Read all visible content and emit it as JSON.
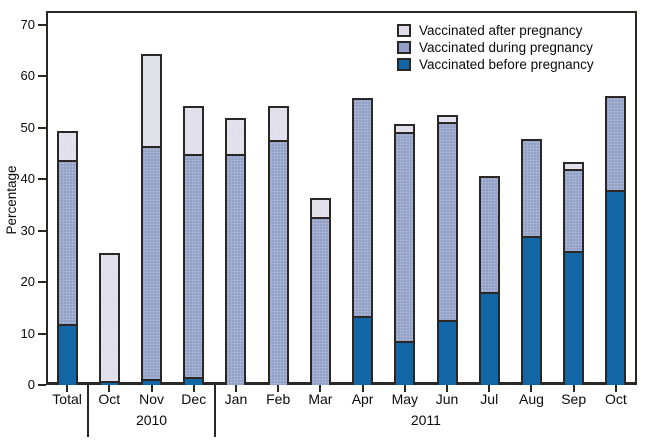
{
  "figure": {
    "background": "#ffffff",
    "frame_color": "#2b2724",
    "text_color": "#0a0a0a"
  },
  "chart_data": {
    "type": "bar",
    "stacked": true,
    "title": "",
    "xlabel": "",
    "ylabel": "Percentage",
    "ylim": [
      0,
      70
    ],
    "yticks": [
      0,
      10,
      20,
      30,
      40,
      50,
      60,
      70
    ],
    "grid": false,
    "legend_position": "top-right-inside",
    "categories": [
      "Total",
      "Oct",
      "Nov",
      "Dec",
      "Jan",
      "Feb",
      "Mar",
      "Apr",
      "May",
      "Jun",
      "Jul",
      "Aug",
      "Sep",
      "Oct"
    ],
    "groups": [
      {
        "label": "",
        "indices": [
          0
        ]
      },
      {
        "label": "2010",
        "indices": [
          1,
          2,
          3
        ]
      },
      {
        "label": "2011",
        "indices": [
          4,
          5,
          6,
          7,
          8,
          9,
          10,
          11,
          12,
          13
        ]
      }
    ],
    "legend": [
      {
        "key": "after",
        "label": "Vaccinated after pregnancy",
        "color": "#dedde9"
      },
      {
        "key": "during",
        "label": "Vaccinated during pregnancy",
        "color": "#91a0c6"
      },
      {
        "key": "before",
        "label": "Vaccinated before pregnancy",
        "color": "#1366a6"
      }
    ],
    "series": [
      {
        "name": "Vaccinated before pregnancy",
        "key": "before",
        "color": "#1366a6",
        "values": [
          11.8,
          0.7,
          1.2,
          1.6,
          0,
          0,
          0,
          13.4,
          8.5,
          12.6,
          18.0,
          29.0,
          26.0,
          38.0
        ]
      },
      {
        "name": "Vaccinated during pregnancy",
        "key": "during",
        "color": "#91a0c6",
        "values": [
          32.0,
          0,
          45.3,
          43.3,
          45.0,
          47.7,
          32.6,
          42.1,
          40.7,
          38.6,
          22.2,
          18.5,
          16.0,
          17.8
        ]
      },
      {
        "name": "Vaccinated after pregnancy",
        "key": "after",
        "color": "#dedde9",
        "values": [
          5.2,
          24.6,
          17.5,
          8.9,
          6.5,
          6.1,
          3.4,
          0,
          1.1,
          1.0,
          0,
          0,
          1.0,
          0
        ]
      }
    ],
    "totals": [
      49.0,
      25.3,
      64.0,
      53.8,
      51.5,
      53.8,
      36.0,
      55.5,
      50.3,
      52.2,
      40.2,
      47.5,
      43.0,
      55.8
    ]
  }
}
